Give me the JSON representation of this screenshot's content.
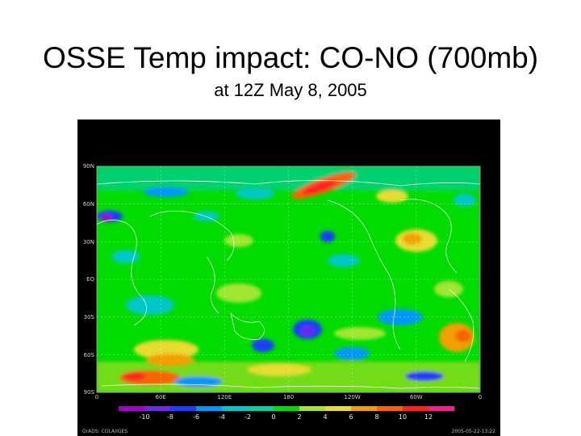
{
  "title": "OSSE Temp impact: CO-NO (700mb)",
  "subtitle": "at 12Z May 8, 2005",
  "map": {
    "lat_ticks": [
      "90N",
      "60N",
      "30N",
      "EQ",
      "30S",
      "60S",
      "90S"
    ],
    "lon_ticks": [
      "0",
      "60E",
      "120E",
      "180",
      "120W",
      "60W",
      "0"
    ],
    "footer_left": "GrADS: COLA/IGES",
    "footer_right": "2005-05-22-13:22"
  },
  "colorbar": {
    "colors": [
      "#a000c8",
      "#6e28e6",
      "#1e3cff",
      "#0096ff",
      "#00c8c8",
      "#00d2a0",
      "#00dc00",
      "#a0e632",
      "#e6dc32",
      "#f0a000",
      "#fa6400",
      "#ff2020",
      "#f0238c"
    ],
    "labels": [
      "-10",
      "-8",
      "-6",
      "-4",
      "-2",
      "0",
      "2",
      "4",
      "6",
      "8",
      "10",
      "12"
    ]
  }
}
